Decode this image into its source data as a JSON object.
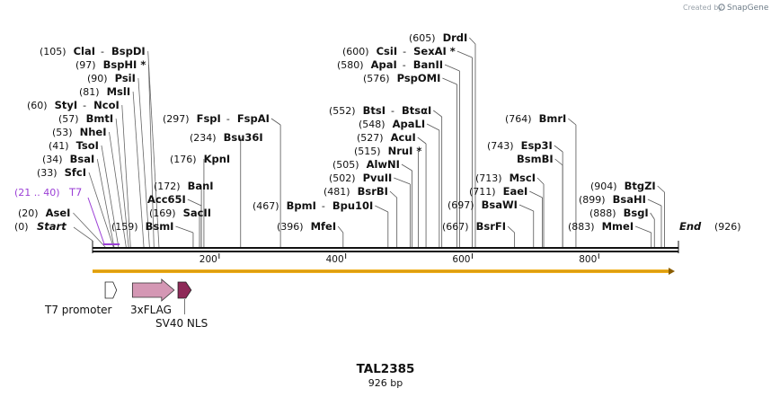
{
  "branding": {
    "created_by": "Created by",
    "app": "SnapGene"
  },
  "construct": {
    "name": "TAL2385",
    "length_label": "926 bp",
    "length": 926
  },
  "colors": {
    "backbone": "#111111",
    "orf": "#f0b020",
    "primer": "#9b3fd6",
    "flag": "#d497b4",
    "nls": "#8e2a58"
  },
  "ends": {
    "start_pos": "(0)",
    "start_label": "Start",
    "end_pos": "(926)",
    "end_label": "End"
  },
  "primer": {
    "pos": "(21 .. 40)",
    "name": "T7",
    "start": 21,
    "end": 40
  },
  "ticks": [
    "200",
    "400",
    "600",
    "800"
  ],
  "sites_left": [
    {
      "pos": "(20)",
      "names": [
        {
          "t": "AseI"
        }
      ],
      "bp": 20
    },
    {
      "pos": "(33)",
      "names": [
        {
          "t": "SfcI"
        }
      ],
      "bp": 33
    },
    {
      "pos": "(34)",
      "names": [
        {
          "t": "BsaI"
        }
      ],
      "bp": 34
    },
    {
      "pos": "(41)",
      "names": [
        {
          "t": "TsoI"
        }
      ],
      "bp": 41
    },
    {
      "pos": "(53)",
      "names": [
        {
          "t": "NheI"
        }
      ],
      "bp": 53
    },
    {
      "pos": "(57)",
      "names": [
        {
          "t": "BmtI"
        }
      ],
      "bp": 57
    },
    {
      "pos": "(60)",
      "names": [
        {
          "t": "StyI"
        },
        {
          "t": "NcoI"
        }
      ],
      "bp": 60
    },
    {
      "pos": "(81)",
      "names": [
        {
          "t": "MslI"
        }
      ],
      "bp": 81
    },
    {
      "pos": "(90)",
      "names": [
        {
          "t": "PsiI"
        }
      ],
      "bp": 90
    },
    {
      "pos": "(97)",
      "names": [
        {
          "t": "BspHI *"
        }
      ],
      "bp": 97
    },
    {
      "pos": "(105)",
      "names": [
        {
          "t": "ClaI"
        },
        {
          "t": "BspDI"
        }
      ],
      "bp": 105
    }
  ],
  "sites_right": [
    {
      "pos": "(159)",
      "names": [
        {
          "t": "BsmI"
        }
      ],
      "bp": 159
    },
    {
      "pos": "(169)",
      "names": [
        {
          "t": "SacII"
        }
      ],
      "bp": 169
    },
    {
      "pos": "",
      "names": [
        {
          "t": "Acc65I"
        }
      ],
      "bp": 172
    },
    {
      "pos": "(172)",
      "names": [
        {
          "t": "BanI"
        }
      ],
      "bp": 172
    },
    {
      "pos": "(176)",
      "names": [
        {
          "t": "KpnI"
        }
      ],
      "bp": 176
    },
    {
      "pos": "(234)",
      "names": [
        {
          "t": "Bsu36I"
        }
      ],
      "bp": 234
    },
    {
      "pos": "(297)",
      "names": [
        {
          "t": "FspI"
        },
        {
          "t": "FspAI"
        }
      ],
      "bp": 297
    },
    {
      "pos": "(396)",
      "names": [
        {
          "t": "MfeI"
        }
      ],
      "bp": 396
    },
    {
      "pos": "(467)",
      "names": [
        {
          "t": "BpmI"
        },
        {
          "t": "Bpu10I"
        }
      ],
      "bp": 467
    },
    {
      "pos": "(481)",
      "names": [
        {
          "t": "BsrBI"
        }
      ],
      "bp": 481
    },
    {
      "pos": "(502)",
      "names": [
        {
          "t": "PvuII"
        }
      ],
      "bp": 502
    },
    {
      "pos": "(505)",
      "names": [
        {
          "t": "AlwNI"
        }
      ],
      "bp": 505
    },
    {
      "pos": "(515)",
      "names": [
        {
          "t": "NruI *"
        }
      ],
      "bp": 515
    },
    {
      "pos": "(527)",
      "names": [
        {
          "t": "AcuI"
        }
      ],
      "bp": 527
    },
    {
      "pos": "(548)",
      "names": [
        {
          "t": "ApaLI"
        }
      ],
      "bp": 548
    },
    {
      "pos": "(552)",
      "names": [
        {
          "t": "BtsI"
        },
        {
          "t": "BtsαI"
        }
      ],
      "bp": 552
    },
    {
      "pos": "(576)",
      "names": [
        {
          "t": "PspOMI"
        }
      ],
      "bp": 576
    },
    {
      "pos": "(580)",
      "names": [
        {
          "t": "ApaI"
        },
        {
          "t": "BanII"
        }
      ],
      "bp": 580
    },
    {
      "pos": "(600)",
      "names": [
        {
          "t": "CsiI"
        },
        {
          "t": "SexAI *"
        }
      ],
      "bp": 600
    },
    {
      "pos": "(605)",
      "names": [
        {
          "t": "DrdI"
        }
      ],
      "bp": 605
    },
    {
      "pos": "(667)",
      "names": [
        {
          "t": "BsrFI"
        }
      ],
      "bp": 667
    },
    {
      "pos": "(697)",
      "names": [
        {
          "t": "BsaWI"
        }
      ],
      "bp": 697
    },
    {
      "pos": "(711)",
      "names": [
        {
          "t": "EaeI"
        }
      ],
      "bp": 711
    },
    {
      "pos": "(713)",
      "names": [
        {
          "t": "MscI"
        }
      ],
      "bp": 713
    },
    {
      "pos": "",
      "names": [
        {
          "t": "BsmBI"
        }
      ],
      "bp": 743
    },
    {
      "pos": "(743)",
      "names": [
        {
          "t": "Esp3I"
        }
      ],
      "bp": 743
    },
    {
      "pos": "(764)",
      "names": [
        {
          "t": "BmrI"
        }
      ],
      "bp": 764
    },
    {
      "pos": "(883)",
      "names": [
        {
          "t": "MmeI"
        }
      ],
      "bp": 883
    },
    {
      "pos": "(888)",
      "names": [
        {
          "t": "BsgI"
        }
      ],
      "bp": 888
    },
    {
      "pos": "(899)",
      "names": [
        {
          "t": "BsaHI"
        }
      ],
      "bp": 899
    },
    {
      "pos": "(904)",
      "names": [
        {
          "t": "BtgZI"
        }
      ],
      "bp": 904
    }
  ],
  "features": [
    {
      "name": "T7 promoter",
      "kind": "promoter",
      "start": 20,
      "end": 38
    },
    {
      "name": "3xFLAG",
      "kind": "tag",
      "start": 63,
      "end": 129
    },
    {
      "name": "SV40 NLS",
      "kind": "nls",
      "start": 135,
      "end": 156
    }
  ]
}
